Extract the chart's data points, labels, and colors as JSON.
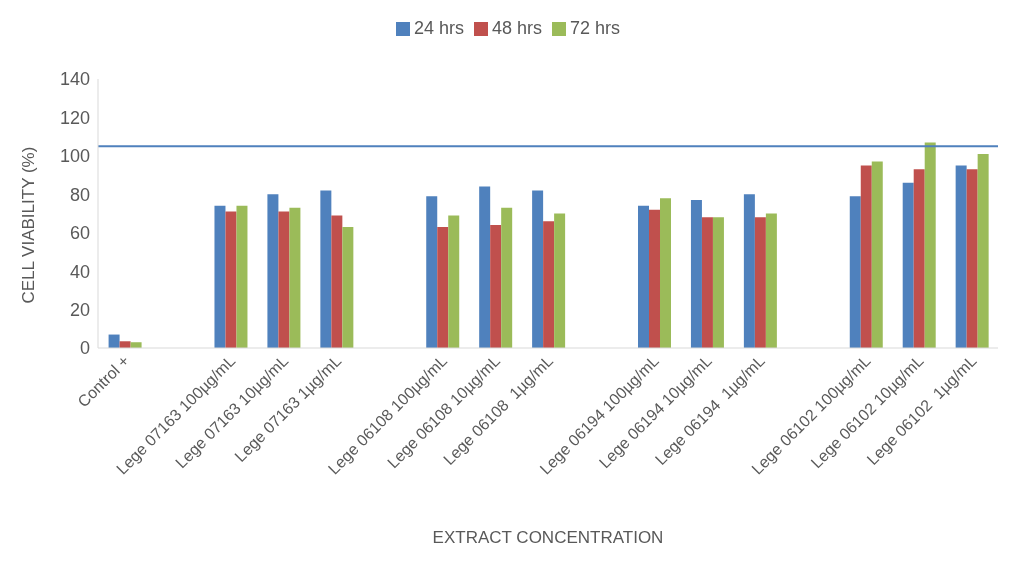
{
  "chart_data": {
    "type": "bar",
    "xlabel": "EXTRACT CONCENTRATION",
    "ylabel": "CELL VIABILITY (%)",
    "categories": [
      "Control +",
      null,
      "Lege 07163 100µg/mL",
      "Lege 07163 10µg/mL",
      "Lege 07163 1µg/mL",
      null,
      "Lege 06108 100µg/mL",
      "Lege 06108 10µg/mL",
      "Lege 06108  1µg/mL",
      null,
      "Lege 06194 100µg/mL",
      "Lege 06194 10µg/mL",
      "Lege 06194  1µg/mL",
      null,
      "Lege 06102 100µg/mL",
      "Lege 06102 10µg/mL",
      "Lege 06102  1µg/mL"
    ],
    "series": [
      {
        "name": "24 hrs",
        "color": "#4f81bd",
        "values": [
          7,
          null,
          74,
          80,
          82,
          null,
          79,
          84,
          82,
          null,
          74,
          77,
          80,
          null,
          79,
          86,
          95
        ]
      },
      {
        "name": "48 hrs",
        "color": "#c0504d",
        "values": [
          3.5,
          null,
          71,
          71,
          69,
          null,
          63,
          64,
          66,
          null,
          72,
          68,
          68,
          null,
          95,
          93,
          93
        ]
      },
      {
        "name": "72 hrs",
        "color": "#9bbb59",
        "values": [
          3,
          null,
          74,
          73,
          63,
          null,
          69,
          73,
          70,
          null,
          78,
          68,
          70,
          null,
          97,
          107,
          101
        ]
      }
    ],
    "ylim": [
      0,
      140
    ],
    "yticks": [
      0,
      20,
      40,
      60,
      80,
      100,
      120,
      140
    ],
    "grid": false,
    "legend": "top",
    "ref_lines": [
      {
        "axis": "y",
        "value": 105,
        "color": "#4f81bd"
      }
    ]
  }
}
